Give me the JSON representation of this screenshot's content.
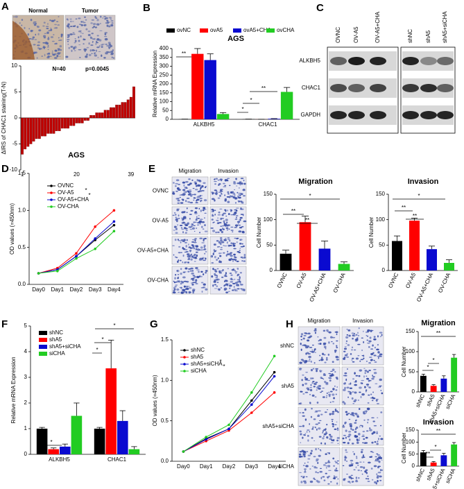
{
  "figure": {
    "panel_labels": [
      "A",
      "B",
      "C",
      "D",
      "E",
      "F",
      "G",
      "H"
    ],
    "panel_a_images": [
      "Normal",
      "Tumor"
    ],
    "blot": {
      "columns": [
        "OVNC",
        "OV-A5",
        "OV-A5+CHA",
        "shNC",
        "shA5",
        "shA5+siCHA"
      ],
      "rows": [
        "ALKBH5",
        "CHAC1",
        "GAPDH"
      ]
    },
    "panel_e_images": {
      "columns": [
        "Migration",
        "Invasion"
      ],
      "rows": [
        "OVNC",
        "OV-A5",
        "OV-A5+CHA",
        "OV-CHA"
      ]
    },
    "panel_h_images": {
      "columns": [
        "Migration",
        "Invasion"
      ],
      "rows": [
        "shNC",
        "shA5",
        "shA5+siCHA",
        "siCHA"
      ]
    }
  },
  "chart_data": [
    {
      "type": "bar",
      "y_label": "ΔIRS of CHAC1 staining(T-N)",
      "annotations": [
        "N=40",
        "p=0.0045"
      ],
      "color": "#c00000",
      "categories": [
        "1",
        null,
        null,
        null,
        null,
        null,
        null,
        null,
        null,
        null,
        null,
        null,
        null,
        null,
        null,
        null,
        null,
        null,
        null,
        "20",
        null,
        null,
        null,
        null,
        null,
        null,
        null,
        null,
        null,
        null,
        null,
        null,
        null,
        null,
        null,
        null,
        null,
        null,
        "39",
        null
      ],
      "values": [
        -7,
        -6,
        -5.5,
        -5,
        -4.5,
        -4,
        -4,
        -3.5,
        -3.5,
        -3,
        -3,
        -3,
        -2.5,
        -2.5,
        -2,
        -2,
        -2,
        -1.5,
        -1.5,
        -1,
        -1,
        -1,
        -0.5,
        -0.5,
        0.5,
        0.5,
        1,
        1,
        1,
        1.5,
        1.5,
        2,
        2,
        2.5,
        2.5,
        3,
        3,
        3.5,
        4,
        6
      ],
      "ylim": [
        -10,
        10
      ],
      "yticks": [
        -10,
        -5,
        0,
        5,
        10
      ]
    },
    {
      "type": "bar",
      "title": "AGS",
      "y_label": "Relative mRNA Expression",
      "annotations": [
        "**",
        "**",
        "*",
        "*"
      ],
      "categories": [
        "ALKBH5",
        "CHAC1"
      ],
      "series": [
        {
          "name": "ovNC",
          "color": "#000000",
          "values": [
            1,
            1
          ],
          "errors": [
            0.2,
            0.2
          ]
        },
        {
          "name": "ovA5",
          "color": "#ff0000",
          "values": [
            370,
            0.3
          ],
          "errors": [
            30,
            0.1
          ]
        },
        {
          "name": "ovA5+CHA",
          "color": "#0a0ad0",
          "values": [
            335,
            3
          ],
          "errors": [
            35,
            1
          ]
        },
        {
          "name": "ovCHA",
          "color": "#22cc22",
          "values": [
            30,
            155
          ],
          "errors": [
            8,
            25
          ]
        }
      ],
      "ylim": [
        0,
        400
      ],
      "yticks": [
        0,
        50,
        100,
        150,
        200,
        250,
        300,
        350,
        400
      ]
    },
    {
      "type": "line",
      "title": "AGS",
      "y_label": "OD values (=450nm)",
      "annotations": [
        "*",
        "*"
      ],
      "categories": [
        "Day0",
        "Day1",
        "Day2",
        "Day3",
        "Day4"
      ],
      "series": [
        {
          "name": "OVNC",
          "color": "#000000",
          "values": [
            0.15,
            0.2,
            0.38,
            0.6,
            0.8
          ]
        },
        {
          "name": "OV-A5",
          "color": "#ff0000",
          "values": [
            0.15,
            0.22,
            0.42,
            0.78,
            1.0
          ]
        },
        {
          "name": "OV-A5+CHA",
          "color": "#0a0ad0",
          "values": [
            0.15,
            0.2,
            0.38,
            0.62,
            0.85
          ]
        },
        {
          "name": "OV-CHA",
          "color": "#22cc22",
          "values": [
            0.15,
            0.18,
            0.35,
            0.48,
            0.72
          ]
        }
      ],
      "ylim": [
        0,
        1.5
      ],
      "yticks": [
        {
          "value": 0,
          "label": "0.0"
        },
        0.5,
        {
          "value": 1,
          "label": "1.0"
        },
        1.5
      ]
    },
    {
      "type": "bar",
      "title": "Migration",
      "y_label": "Cell Number",
      "annotations": [
        "*",
        "**",
        "**"
      ],
      "categories": [
        "OVNC",
        "OV-A5",
        "OV-A5+CHA",
        "OV-CHA"
      ],
      "values": [
        33,
        95,
        43,
        13
      ],
      "errors": [
        7,
        12,
        15,
        4
      ],
      "colors": [
        "#000000",
        "#ff0000",
        "#0a0ad0",
        "#22cc22"
      ],
      "ylim": [
        0,
        150
      ],
      "yticks": [
        0,
        50,
        100,
        150
      ]
    },
    {
      "type": "bar",
      "title": "Invasion",
      "y_label": "Cell Number",
      "annotations": [
        "*",
        "**",
        "**"
      ],
      "categories": [
        "OVNC",
        "OV-A5",
        "OV-A5+CHA",
        "OV-CHA"
      ],
      "values": [
        58,
        98,
        42,
        15
      ],
      "errors": [
        10,
        5,
        6,
        6
      ],
      "colors": [
        "#000000",
        "#ff0000",
        "#0a0ad0",
        "#22cc22"
      ],
      "ylim": [
        0,
        150
      ],
      "yticks": [
        0,
        50,
        100,
        150
      ]
    },
    {
      "type": "bar",
      "y_label": "Relative mRNA Expression",
      "annotations": [
        "*",
        "*",
        "*",
        "*"
      ],
      "categories": [
        "ALKBH5",
        "CHAC1"
      ],
      "series": [
        {
          "name": "shNC",
          "color": "#000000",
          "values": [
            1,
            1
          ],
          "errors": [
            0.05,
            0.05
          ]
        },
        {
          "name": "shA5",
          "color": "#ff0000",
          "values": [
            0.2,
            3.35
          ],
          "errors": [
            0.05,
            1.1
          ]
        },
        {
          "name": "shA5+siCHA",
          "color": "#0a0ad0",
          "values": [
            0.3,
            1.3
          ],
          "errors": [
            0.1,
            0.4
          ]
        },
        {
          "name": "siCHA",
          "color": "#22cc22",
          "values": [
            1.5,
            0.2
          ],
          "errors": [
            0.5,
            0.1
          ]
        }
      ],
      "ylim": [
        0,
        5
      ],
      "yticks": [
        0,
        1,
        2,
        3,
        4,
        5
      ]
    },
    {
      "type": "line",
      "y_label": "OD values (=450nm)",
      "annotations": [
        "*",
        "*"
      ],
      "categories": [
        "Day0",
        "Day1",
        "Day2",
        "Day3",
        "Day4"
      ],
      "series": [
        {
          "name": "shNC",
          "color": "#000000",
          "values": [
            0.12,
            0.28,
            0.4,
            0.75,
            1.1
          ]
        },
        {
          "name": "shA5",
          "color": "#ff0000",
          "values": [
            0.12,
            0.25,
            0.38,
            0.6,
            0.85
          ]
        },
        {
          "name": "shA5+siCHA",
          "color": "#0a0ad0",
          "values": [
            0.12,
            0.27,
            0.4,
            0.7,
            1.05
          ]
        },
        {
          "name": "siCHA",
          "color": "#22cc22",
          "values": [
            0.12,
            0.3,
            0.45,
            0.85,
            1.3
          ]
        }
      ],
      "ylim": [
        0,
        1.5
      ],
      "yticks": [
        {
          "value": 0,
          "label": "0.0"
        },
        0.5,
        {
          "value": 1,
          "label": "1.0"
        },
        1.5
      ]
    },
    {
      "type": "bar",
      "title": "Migration",
      "y_label": "Cell Number",
      "annotations": [
        "**",
        "*",
        "*"
      ],
      "categories": [
        "shNC",
        "shA5",
        "shA5+siCHA",
        "siCHA"
      ],
      "values": [
        40,
        15,
        33,
        85
      ],
      "errors": [
        4,
        3,
        7,
        8
      ],
      "colors": [
        "#000000",
        "#ff0000",
        "#0a0ad0",
        "#22cc22"
      ],
      "ylim": [
        0,
        150
      ],
      "yticks": [
        0,
        50,
        100,
        150
      ]
    },
    {
      "type": "bar",
      "title": "Invasion",
      "y_label": "Cell Number",
      "annotations": [
        "**",
        "**",
        "*"
      ],
      "categories": [
        "shNC",
        "shA5",
        "shA5+siCHA",
        "siCHA"
      ],
      "values": [
        57,
        15,
        45,
        90
      ],
      "errors": [
        8,
        4,
        8,
        8
      ],
      "colors": [
        "#000000",
        "#ff0000",
        "#0a0ad0",
        "#22cc22"
      ],
      "ylim": [
        0,
        150
      ],
      "yticks": [
        0,
        50,
        100,
        150
      ]
    }
  ]
}
